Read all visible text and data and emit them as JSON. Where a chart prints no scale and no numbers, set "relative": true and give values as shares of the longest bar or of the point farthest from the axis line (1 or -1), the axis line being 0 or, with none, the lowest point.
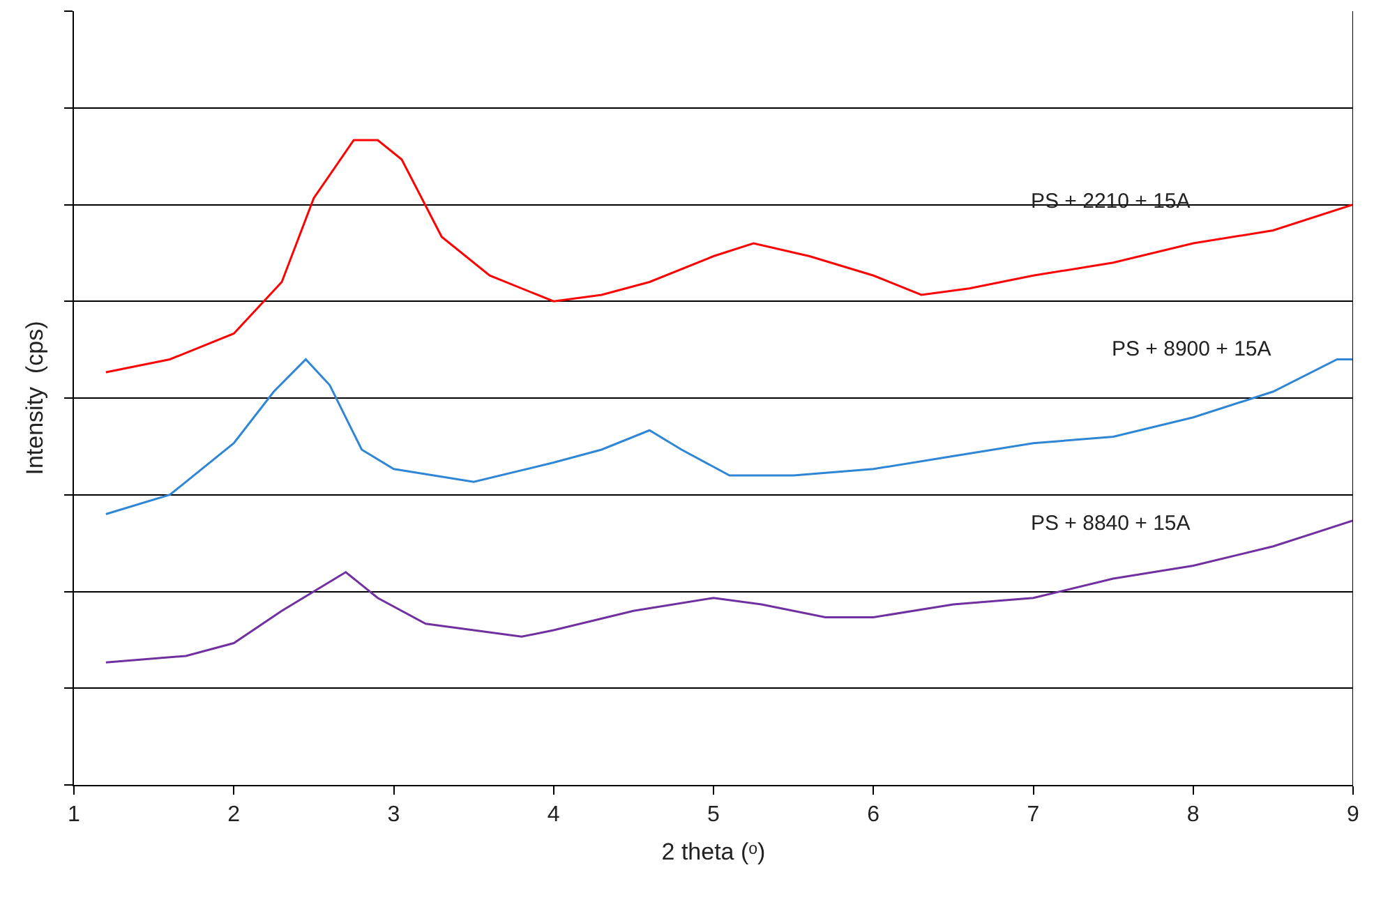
{
  "chart_data": {
    "type": "line",
    "relative": true,
    "xlabel": "2 theta (ᵒ)",
    "ylabel": "Intensity  (cps)",
    "xlim": [
      1,
      9
    ],
    "xticks": [
      1,
      2,
      3,
      4,
      5,
      6,
      7,
      8,
      9
    ],
    "grid": "y",
    "legend": false,
    "marker": "none",
    "line_style": "solid",
    "tick_labels": "x",
    "series": [
      {
        "name": "PS + 2210 + 15A",
        "color": "#ff0000",
        "x": [
          1.2,
          1.6,
          2.0,
          2.3,
          2.5,
          2.75,
          2.9,
          3.05,
          3.3,
          3.6,
          4.0,
          4.3,
          4.6,
          5.0,
          5.25,
          5.6,
          6.0,
          6.3,
          6.6,
          7.0,
          7.5,
          8.0,
          8.5,
          9.0
        ],
        "values": [
          0.64,
          0.66,
          0.7,
          0.78,
          0.91,
          1.0,
          1.0,
          0.97,
          0.85,
          0.79,
          0.75,
          0.76,
          0.78,
          0.82,
          0.84,
          0.82,
          0.79,
          0.76,
          0.77,
          0.79,
          0.81,
          0.84,
          0.86,
          0.9
        ]
      },
      {
        "name": "PS + 8900 + 15A",
        "color": "#2e86d4",
        "x": [
          1.2,
          1.6,
          2.0,
          2.25,
          2.45,
          2.6,
          2.8,
          3.0,
          3.5,
          4.0,
          4.3,
          4.6,
          4.8,
          5.1,
          5.5,
          6.0,
          6.5,
          7.0,
          7.5,
          8.0,
          8.5,
          8.9,
          9.0
        ],
        "values": [
          0.42,
          0.45,
          0.53,
          0.61,
          0.66,
          0.62,
          0.52,
          0.49,
          0.47,
          0.5,
          0.52,
          0.55,
          0.52,
          0.48,
          0.48,
          0.49,
          0.51,
          0.53,
          0.54,
          0.57,
          0.61,
          0.66,
          0.66
        ]
      },
      {
        "name": "PS + 8840 + 15A",
        "color": "#7030a0",
        "x": [
          1.2,
          1.7,
          2.0,
          2.3,
          2.5,
          2.7,
          2.9,
          3.2,
          3.5,
          3.8,
          4.0,
          4.5,
          5.0,
          5.3,
          5.7,
          6.0,
          6.5,
          7.0,
          7.5,
          8.0,
          8.5,
          9.0
        ],
        "values": [
          0.19,
          0.2,
          0.22,
          0.27,
          0.3,
          0.33,
          0.29,
          0.25,
          0.24,
          0.23,
          0.24,
          0.27,
          0.29,
          0.28,
          0.26,
          0.26,
          0.28,
          0.29,
          0.32,
          0.34,
          0.37,
          0.41
        ]
      }
    ]
  }
}
